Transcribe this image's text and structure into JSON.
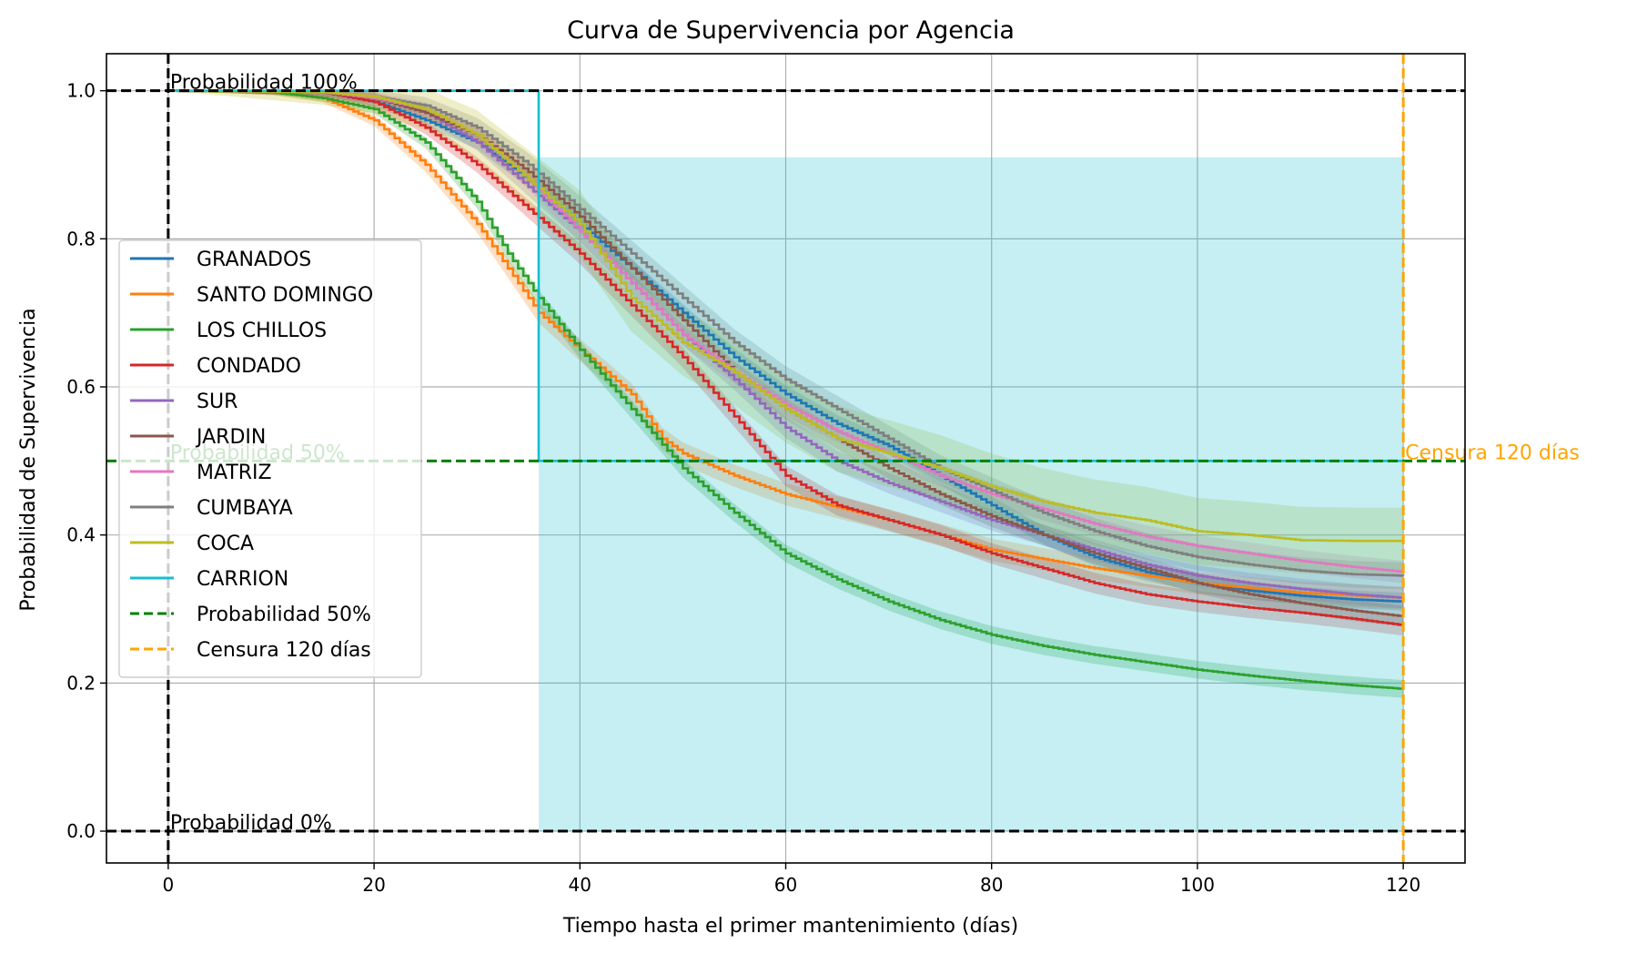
{
  "chart_data": {
    "type": "line",
    "title": "Curva de Supervivencia por Agencia",
    "xlabel": "Tiempo hasta el primer mantenimiento (días)",
    "ylabel": "Probabilidad de Supervivencia",
    "xlim": [
      -6,
      126
    ],
    "ylim": [
      -0.043,
      1.05
    ],
    "xticks": [
      0,
      20,
      40,
      60,
      80,
      100,
      120
    ],
    "yticks": [
      0.0,
      0.2,
      0.4,
      0.6,
      0.8,
      1.0
    ],
    "xtick_labels": [
      "0",
      "20",
      "40",
      "60",
      "80",
      "100",
      "120"
    ],
    "ytick_labels": [
      "0.0",
      "0.2",
      "0.4",
      "0.6",
      "0.8",
      "1.0"
    ],
    "grid": true,
    "legend_position": "center-left",
    "series": [
      {
        "name": "GRANADOS",
        "color": "#1f77b4",
        "band": 0.012,
        "x": [
          0,
          15,
          20,
          25,
          30,
          35,
          40,
          45,
          50,
          55,
          60,
          65,
          70,
          75,
          80,
          85,
          90,
          95,
          100,
          105,
          110,
          115,
          120
        ],
        "y": [
          1.0,
          0.998,
          0.985,
          0.96,
          0.93,
          0.88,
          0.82,
          0.76,
          0.7,
          0.64,
          0.59,
          0.55,
          0.52,
          0.48,
          0.44,
          0.4,
          0.37,
          0.35,
          0.335,
          0.325,
          0.318,
          0.313,
          0.31
        ]
      },
      {
        "name": "SANTO DOMINGO",
        "color": "#ff7f0e",
        "band": 0.015,
        "x": [
          0,
          10,
          15,
          20,
          25,
          30,
          33,
          36,
          40,
          45,
          48,
          50,
          55,
          60,
          70,
          80,
          90,
          100,
          110,
          120
        ],
        "y": [
          1.0,
          0.998,
          0.99,
          0.96,
          0.9,
          0.82,
          0.76,
          0.7,
          0.65,
          0.59,
          0.53,
          0.51,
          0.48,
          0.455,
          0.42,
          0.38,
          0.355,
          0.335,
          0.322,
          0.315
        ]
      },
      {
        "name": "LOS CHILLOS",
        "color": "#2ca02c",
        "band": 0.012,
        "x": [
          0,
          10,
          15,
          20,
          25,
          30,
          33,
          36,
          40,
          45,
          50,
          55,
          60,
          65,
          70,
          75,
          80,
          85,
          90,
          95,
          100,
          105,
          110,
          115,
          120
        ],
        "y": [
          1.0,
          0.998,
          0.99,
          0.975,
          0.93,
          0.85,
          0.78,
          0.72,
          0.65,
          0.57,
          0.49,
          0.43,
          0.375,
          0.34,
          0.31,
          0.285,
          0.265,
          0.25,
          0.238,
          0.228,
          0.218,
          0.21,
          0.203,
          0.197,
          0.192
        ]
      },
      {
        "name": "CONDADO",
        "color": "#d62728",
        "band": 0.014,
        "x": [
          0,
          15,
          20,
          25,
          30,
          35,
          40,
          45,
          50,
          55,
          60,
          65,
          70,
          75,
          80,
          85,
          90,
          95,
          100,
          105,
          110,
          115,
          120
        ],
        "y": [
          1.0,
          0.998,
          0.985,
          0.95,
          0.9,
          0.84,
          0.78,
          0.71,
          0.64,
          0.56,
          0.48,
          0.44,
          0.42,
          0.4,
          0.375,
          0.355,
          0.335,
          0.32,
          0.31,
          0.302,
          0.295,
          0.287,
          0.278
        ]
      },
      {
        "name": "SUR",
        "color": "#9467bd",
        "band": 0.014,
        "x": [
          0,
          15,
          20,
          25,
          30,
          35,
          40,
          45,
          50,
          55,
          60,
          65,
          70,
          75,
          80,
          85,
          90,
          95,
          100,
          105,
          110,
          115,
          120
        ],
        "y": [
          1.0,
          0.998,
          0.99,
          0.97,
          0.93,
          0.87,
          0.81,
          0.74,
          0.67,
          0.61,
          0.545,
          0.5,
          0.47,
          0.445,
          0.42,
          0.4,
          0.38,
          0.36,
          0.345,
          0.335,
          0.327,
          0.32,
          0.315
        ]
      },
      {
        "name": "JARDIN",
        "color": "#8c564b",
        "band": 0.014,
        "x": [
          0,
          15,
          20,
          25,
          30,
          35,
          40,
          45,
          50,
          55,
          60,
          65,
          70,
          75,
          80,
          85,
          90,
          95,
          100,
          105,
          110,
          115,
          120
        ],
        "y": [
          1.0,
          0.998,
          0.99,
          0.97,
          0.94,
          0.89,
          0.83,
          0.76,
          0.69,
          0.62,
          0.57,
          0.53,
          0.49,
          0.455,
          0.425,
          0.4,
          0.375,
          0.355,
          0.335,
          0.32,
          0.308,
          0.298,
          0.29
        ]
      },
      {
        "name": "MATRIZ",
        "color": "#e377c2",
        "band": 0.015,
        "x": [
          0,
          15,
          20,
          25,
          30,
          35,
          40,
          45,
          50,
          55,
          60,
          65,
          70,
          75,
          80,
          85,
          90,
          95,
          100,
          105,
          110,
          115,
          120
        ],
        "y": [
          1.0,
          0.998,
          0.99,
          0.975,
          0.94,
          0.88,
          0.81,
          0.74,
          0.67,
          0.62,
          0.575,
          0.54,
          0.51,
          0.48,
          0.455,
          0.435,
          0.415,
          0.398,
          0.385,
          0.375,
          0.365,
          0.357,
          0.35
        ]
      },
      {
        "name": "CUMBAYA",
        "color": "#7f7f7f",
        "band": 0.018,
        "x": [
          0,
          15,
          20,
          25,
          30,
          35,
          40,
          45,
          50,
          55,
          60,
          65,
          70,
          75,
          80,
          85,
          90,
          95,
          100,
          105,
          110,
          115,
          120
        ],
        "y": [
          1.0,
          0.998,
          0.992,
          0.98,
          0.95,
          0.9,
          0.84,
          0.78,
          0.72,
          0.66,
          0.61,
          0.57,
          0.53,
          0.49,
          0.46,
          0.43,
          0.405,
          0.385,
          0.37,
          0.36,
          0.352,
          0.347,
          0.345
        ]
      },
      {
        "name": "COCA",
        "color": "#bcbd22",
        "band": 0.045,
        "x": [
          0,
          15,
          20,
          25,
          30,
          35,
          40,
          45,
          50,
          55,
          60,
          65,
          70,
          75,
          80,
          85,
          90,
          95,
          100,
          105,
          110,
          115,
          120
        ],
        "y": [
          1.0,
          0.998,
          0.992,
          0.975,
          0.94,
          0.88,
          0.82,
          0.72,
          0.66,
          0.62,
          0.57,
          0.53,
          0.51,
          0.49,
          0.465,
          0.445,
          0.43,
          0.42,
          0.405,
          0.4,
          0.393,
          0.392,
          0.392
        ]
      },
      {
        "name": "CARRION",
        "color": "#17becf",
        "band": 0.0,
        "x": [
          0,
          36,
          36,
          120
        ],
        "y": [
          1.0,
          1.0,
          0.5,
          0.5
        ],
        "ci_x": [
          36,
          120
        ],
        "ci_lower": 0.0,
        "ci_upper": 0.91
      }
    ],
    "reference_lines": [
      {
        "name": "Probabilidad 50%",
        "orientation": "horizontal",
        "value": 0.5,
        "color": "#008000"
      },
      {
        "name": "Censura 120 días",
        "orientation": "vertical",
        "value": 120,
        "color": "#ffa500"
      }
    ],
    "extra_lines": [
      {
        "orientation": "horizontal",
        "value": 1.0,
        "color": "#000000"
      },
      {
        "orientation": "horizontal",
        "value": 0.0,
        "color": "#000000"
      },
      {
        "orientation": "vertical",
        "value": 0,
        "color": "#000000"
      }
    ],
    "annotations": [
      {
        "text": "Probabilidad 100%",
        "x": 0,
        "y": 1.0,
        "color": "#000000"
      },
      {
        "text": "Probabilidad 50%",
        "x": 0,
        "y": 0.5,
        "color": "#008000"
      },
      {
        "text": "Probabilidad 0%",
        "x": 0,
        "y": 0.0,
        "color": "#000000"
      },
      {
        "text": "Censura 120 días",
        "x": 120,
        "y": 0.5,
        "color": "#ffa500"
      }
    ]
  }
}
